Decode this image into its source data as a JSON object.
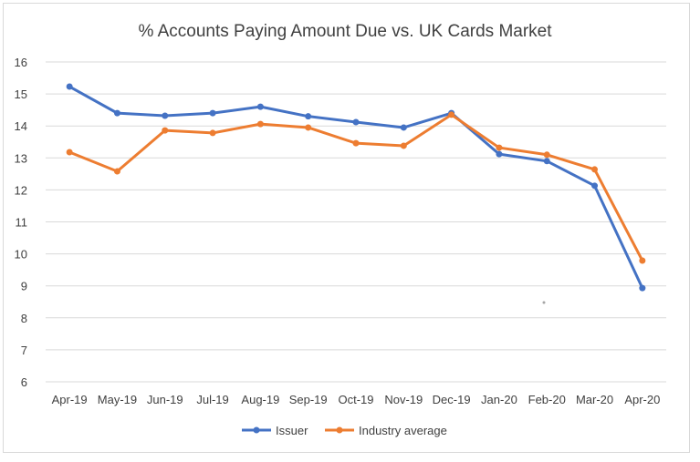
{
  "chart_data": {
    "type": "line",
    "title": "% Accounts Paying Amount Due vs. UK Cards Market",
    "xlabel": "",
    "ylabel": "",
    "ylim": [
      6,
      16
    ],
    "yticks": [
      6,
      7,
      8,
      9,
      10,
      11,
      12,
      13,
      14,
      15,
      16
    ],
    "grid": true,
    "legend_position": "bottom",
    "categories": [
      "Apr-19",
      "May-19",
      "Jun-19",
      "Jul-19",
      "Aug-19",
      "Sep-19",
      "Oct-19",
      "Nov-19",
      "Dec-19",
      "Jan-20",
      "Feb-20",
      "Mar-20",
      "Apr-20"
    ],
    "series": [
      {
        "name": "Issuer",
        "color": "#4472c4",
        "values": [
          15.23,
          14.4,
          14.32,
          14.4,
          14.6,
          14.3,
          14.12,
          13.95,
          14.4,
          13.12,
          12.9,
          12.13,
          8.93
        ]
      },
      {
        "name": "Industry average",
        "color": "#ed7d31",
        "values": [
          13.18,
          12.58,
          13.86,
          13.78,
          14.06,
          13.95,
          13.46,
          13.38,
          14.35,
          13.32,
          13.1,
          12.64,
          9.79
        ]
      }
    ]
  }
}
